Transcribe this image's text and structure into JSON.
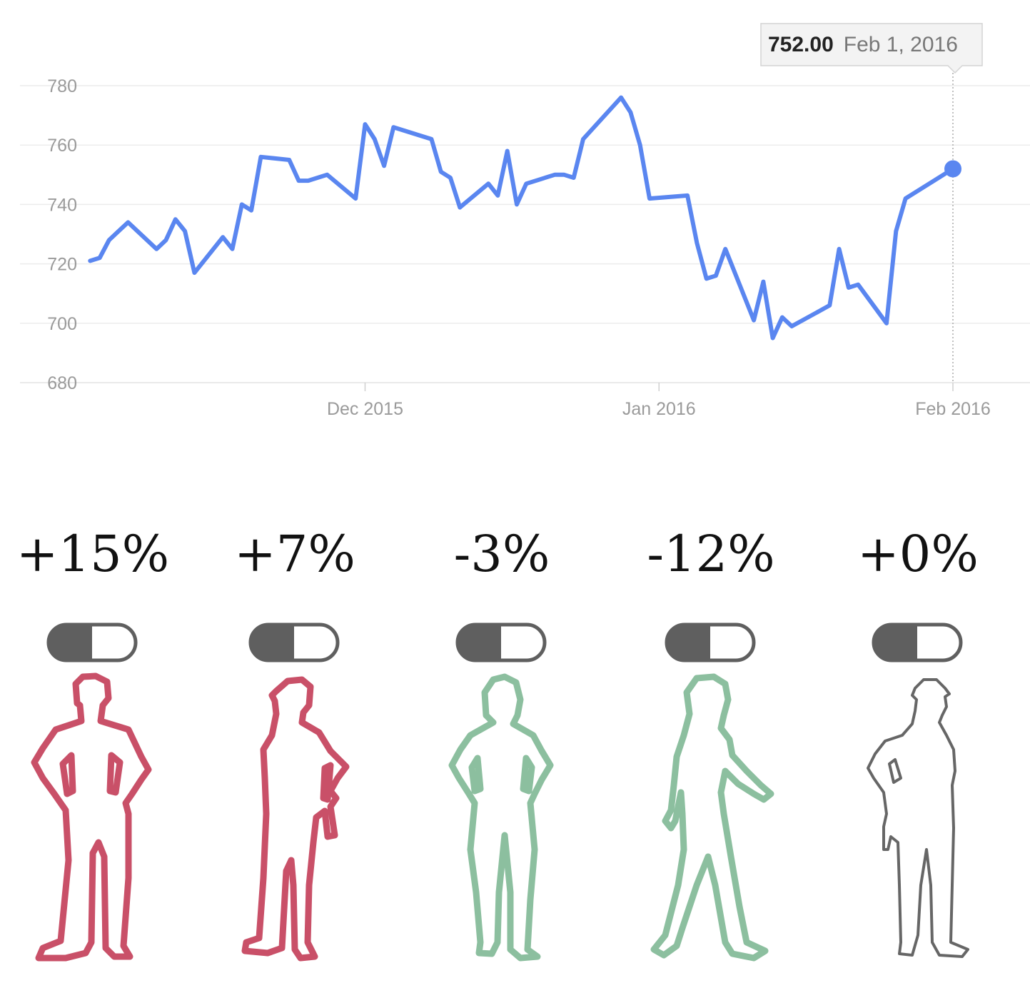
{
  "chart_data": {
    "type": "line",
    "yticks": [
      680,
      700,
      720,
      740,
      760,
      780
    ],
    "ylim": [
      680,
      780
    ],
    "xticks": [
      {
        "label": "Dec 2015",
        "date": "2015-12-01"
      },
      {
        "label": "Jan 2016",
        "date": "2016-01-01"
      },
      {
        "label": "Feb 2016",
        "date": "2016-02-01"
      }
    ],
    "xlim": [
      "2015-11-01",
      "2016-02-08"
    ],
    "grid": true,
    "color": "#5a86f0",
    "tooltip": {
      "value": "752.00",
      "date": "Feb 1, 2016"
    },
    "series": [
      {
        "points": [
          [
            "2015-11-02",
            721
          ],
          [
            "2015-11-03",
            722
          ],
          [
            "2015-11-04",
            728
          ],
          [
            "2015-11-05",
            731
          ],
          [
            "2015-11-06",
            734
          ],
          [
            "2015-11-09",
            725
          ],
          [
            "2015-11-10",
            728
          ],
          [
            "2015-11-11",
            735
          ],
          [
            "2015-11-12",
            731
          ],
          [
            "2015-11-13",
            717
          ],
          [
            "2015-11-16",
            729
          ],
          [
            "2015-11-17",
            725
          ],
          [
            "2015-11-18",
            740
          ],
          [
            "2015-11-19",
            738
          ],
          [
            "2015-11-20",
            756
          ],
          [
            "2015-11-23",
            755
          ],
          [
            "2015-11-24",
            748
          ],
          [
            "2015-11-25",
            748
          ],
          [
            "2015-11-27",
            750
          ],
          [
            "2015-11-30",
            742
          ],
          [
            "2015-12-01",
            767
          ],
          [
            "2015-12-02",
            762
          ],
          [
            "2015-12-03",
            753
          ],
          [
            "2015-12-04",
            766
          ],
          [
            "2015-12-07",
            763
          ],
          [
            "2015-12-08",
            762
          ],
          [
            "2015-12-09",
            751
          ],
          [
            "2015-12-10",
            749
          ],
          [
            "2015-12-11",
            739
          ],
          [
            "2015-12-14",
            747
          ],
          [
            "2015-12-15",
            743
          ],
          [
            "2015-12-16",
            758
          ],
          [
            "2015-12-17",
            740
          ],
          [
            "2015-12-18",
            747
          ],
          [
            "2015-12-21",
            750
          ],
          [
            "2015-12-22",
            750
          ],
          [
            "2015-12-23",
            749
          ],
          [
            "2015-12-24",
            762
          ],
          [
            "2015-12-28",
            776
          ],
          [
            "2015-12-29",
            771
          ],
          [
            "2015-12-30",
            760
          ],
          [
            "2015-12-31",
            742
          ],
          [
            "2016-01-04",
            743
          ],
          [
            "2016-01-05",
            727
          ],
          [
            "2016-01-06",
            715
          ],
          [
            "2016-01-07",
            716
          ],
          [
            "2016-01-08",
            725
          ],
          [
            "2016-01-11",
            701
          ],
          [
            "2016-01-12",
            714
          ],
          [
            "2016-01-13",
            695
          ],
          [
            "2016-01-14",
            702
          ],
          [
            "2016-01-15",
            699
          ],
          [
            "2016-01-19",
            706
          ],
          [
            "2016-01-20",
            725
          ],
          [
            "2016-01-21",
            712
          ],
          [
            "2016-01-22",
            713
          ],
          [
            "2016-01-25",
            700
          ],
          [
            "2016-01-26",
            731
          ],
          [
            "2016-01-27",
            742
          ],
          [
            "2016-02-01",
            752
          ]
        ]
      }
    ]
  },
  "people": [
    {
      "change": "+15%",
      "color": "#c95068",
      "figure": "man-hands-on-hips-icon",
      "toggle_state": 0.5
    },
    {
      "change": "+7%",
      "color": "#c95068",
      "figure": "man-hard-hat-icon",
      "toggle_state": 0.5
    },
    {
      "change": "-3%",
      "color": "#8cbf9f",
      "figure": "woman-hands-on-hips-icon",
      "toggle_state": 0.5
    },
    {
      "change": "-12%",
      "color": "#8cbf9f",
      "figure": "woman-walking-icon",
      "toggle_state": 0.5
    },
    {
      "change": "+0%",
      "color": "#666666",
      "figure": "woman-hard-hat-icon",
      "toggle_state": 0.5
    }
  ]
}
